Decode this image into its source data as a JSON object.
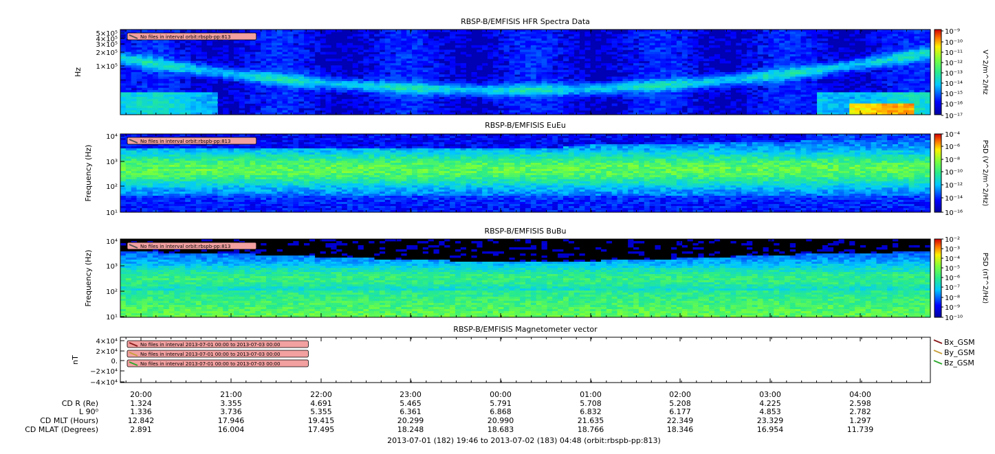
{
  "chart_data": [
    {
      "type": "heatmap",
      "title": "RBSP-B/EMFISIS  HFR Spectra Data",
      "ylabel": "Hz",
      "scale": "log",
      "ytick_labels": [
        "5×10⁵",
        "4×10⁵",
        "3×10⁵",
        "2×10⁵",
        "1×10⁵"
      ],
      "colorbar_label": "V^2/m^2/Hz",
      "colorbar_ticks": [
        "10⁻⁹",
        "10⁻¹⁰",
        "10⁻¹¹",
        "10⁻¹²",
        "10⁻¹³",
        "10⁻¹⁴",
        "10⁻¹⁵",
        "10⁻¹⁶",
        "10⁻¹⁷"
      ],
      "notice": "No files in interval orbit:rbspb-pp:813"
    },
    {
      "type": "heatmap",
      "title": "RBSP-B/EMFISIS  EuEu",
      "ylabel": "Frequency (Hz)",
      "scale": "log",
      "ytick_labels": [
        "10⁴",
        "10³",
        "10²",
        "10¹"
      ],
      "colorbar_label": "PSD (V^2/m^2/Hz)",
      "colorbar_ticks": [
        "10⁻⁴",
        "10⁻⁶",
        "10⁻⁸",
        "10⁻¹⁰",
        "10⁻¹²",
        "10⁻¹⁴",
        "10⁻¹⁶"
      ],
      "notice": "No files in interval orbit:rbspb-pp:813"
    },
    {
      "type": "heatmap",
      "title": "RBSP-B/EMFISIS  BuBu",
      "ylabel": "Frequency (Hz)",
      "scale": "log",
      "ytick_labels": [
        "10⁴",
        "10³",
        "10²",
        "10¹"
      ],
      "colorbar_label": "PSD (nT^2/Hz)",
      "colorbar_ticks": [
        "10⁻²",
        "10⁻³",
        "10⁻⁴",
        "10⁻⁵",
        "10⁻⁶",
        "10⁻⁷",
        "10⁻⁸",
        "10⁻⁹",
        "10⁻¹⁰"
      ],
      "notice": "No files in interval orbit:rbspb-pp:813"
    },
    {
      "type": "line",
      "title": "RBSP-B/EMFISIS  Magnetometer vector",
      "ylabel": "nT",
      "ylim": [
        -40000,
        40000
      ],
      "ytick_labels": [
        "4×10⁴",
        "2×10⁴",
        "0.",
        "−2×10⁴",
        "−4×10⁴"
      ],
      "series": [
        {
          "name": "Bx_GSM",
          "color": "#8b1a1a"
        },
        {
          "name": "By_GSM",
          "color": "#c8a03c"
        },
        {
          "name": "Bz_GSM",
          "color": "#2ea82e"
        }
      ],
      "notices": [
        "No files in interval 2013-07-01 00:00 to 2013-07-03 00:00",
        "No files in interval 2013-07-01 00:00 to 2013-07-03 00:00",
        "No files in interval 2013-07-01 00:00 to 2013-07-03 00:00"
      ]
    }
  ],
  "time_axis": {
    "ticks": [
      "20:00",
      "21:00",
      "22:00",
      "23:00",
      "00:00",
      "01:00",
      "02:00",
      "03:00",
      "04:00"
    ],
    "rows": [
      {
        "label": "CD R (Re)",
        "values": [
          "1.324",
          "3.355",
          "4.691",
          "5.465",
          "5.791",
          "5.708",
          "5.208",
          "4.225",
          "2.598"
        ]
      },
      {
        "label": "L 90⁰",
        "values": [
          "1.336",
          "3.736",
          "5.355",
          "6.361",
          "6.868",
          "6.832",
          "6.177",
          "4.853",
          "2.782"
        ]
      },
      {
        "label": "CD MLT (Hours)",
        "values": [
          "12.842",
          "17.946",
          "19.415",
          "20.299",
          "20.990",
          "21.635",
          "22.349",
          "23.329",
          "1.297"
        ]
      },
      {
        "label": "CD MLAT (Degrees)",
        "values": [
          "2.891",
          "16.004",
          "17.495",
          "18.248",
          "18.683",
          "18.766",
          "18.346",
          "16.954",
          "11.739"
        ]
      }
    ],
    "footer": "2013-07-01 (182) 19:46 to 2013-07-02 (183) 04:48 (orbit:rbspb-pp:813)"
  }
}
